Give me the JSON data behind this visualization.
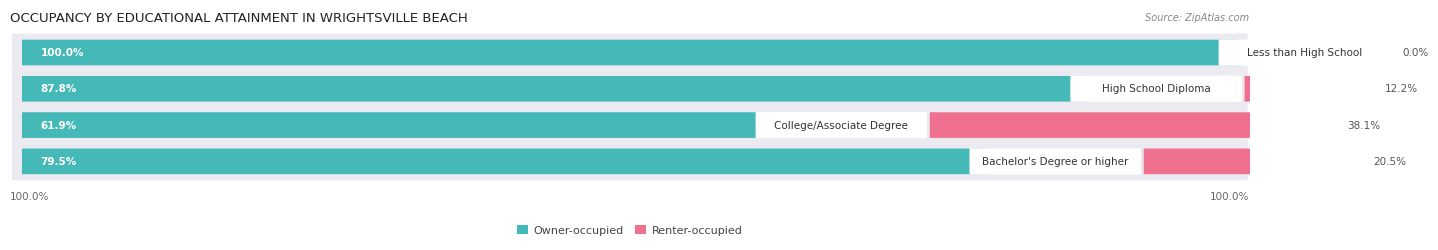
{
  "title": "OCCUPANCY BY EDUCATIONAL ATTAINMENT IN WRIGHTSVILLE BEACH",
  "source": "Source: ZipAtlas.com",
  "categories": [
    "Less than High School",
    "High School Diploma",
    "College/Associate Degree",
    "Bachelor's Degree or higher"
  ],
  "owner_values": [
    100.0,
    87.8,
    61.9,
    79.5
  ],
  "renter_values": [
    0.0,
    12.2,
    38.1,
    20.5
  ],
  "owner_color": "#45b8b8",
  "renter_color": "#f07090",
  "row_bg_color": "#eaeaf0",
  "label_bg_color": "#ffffff",
  "title_fontsize": 9.5,
  "label_fontsize": 7.5,
  "value_fontsize": 7.5,
  "legend_fontsize": 8,
  "source_fontsize": 7,
  "left_axis_label": "100.0%",
  "right_axis_label": "100.0%"
}
